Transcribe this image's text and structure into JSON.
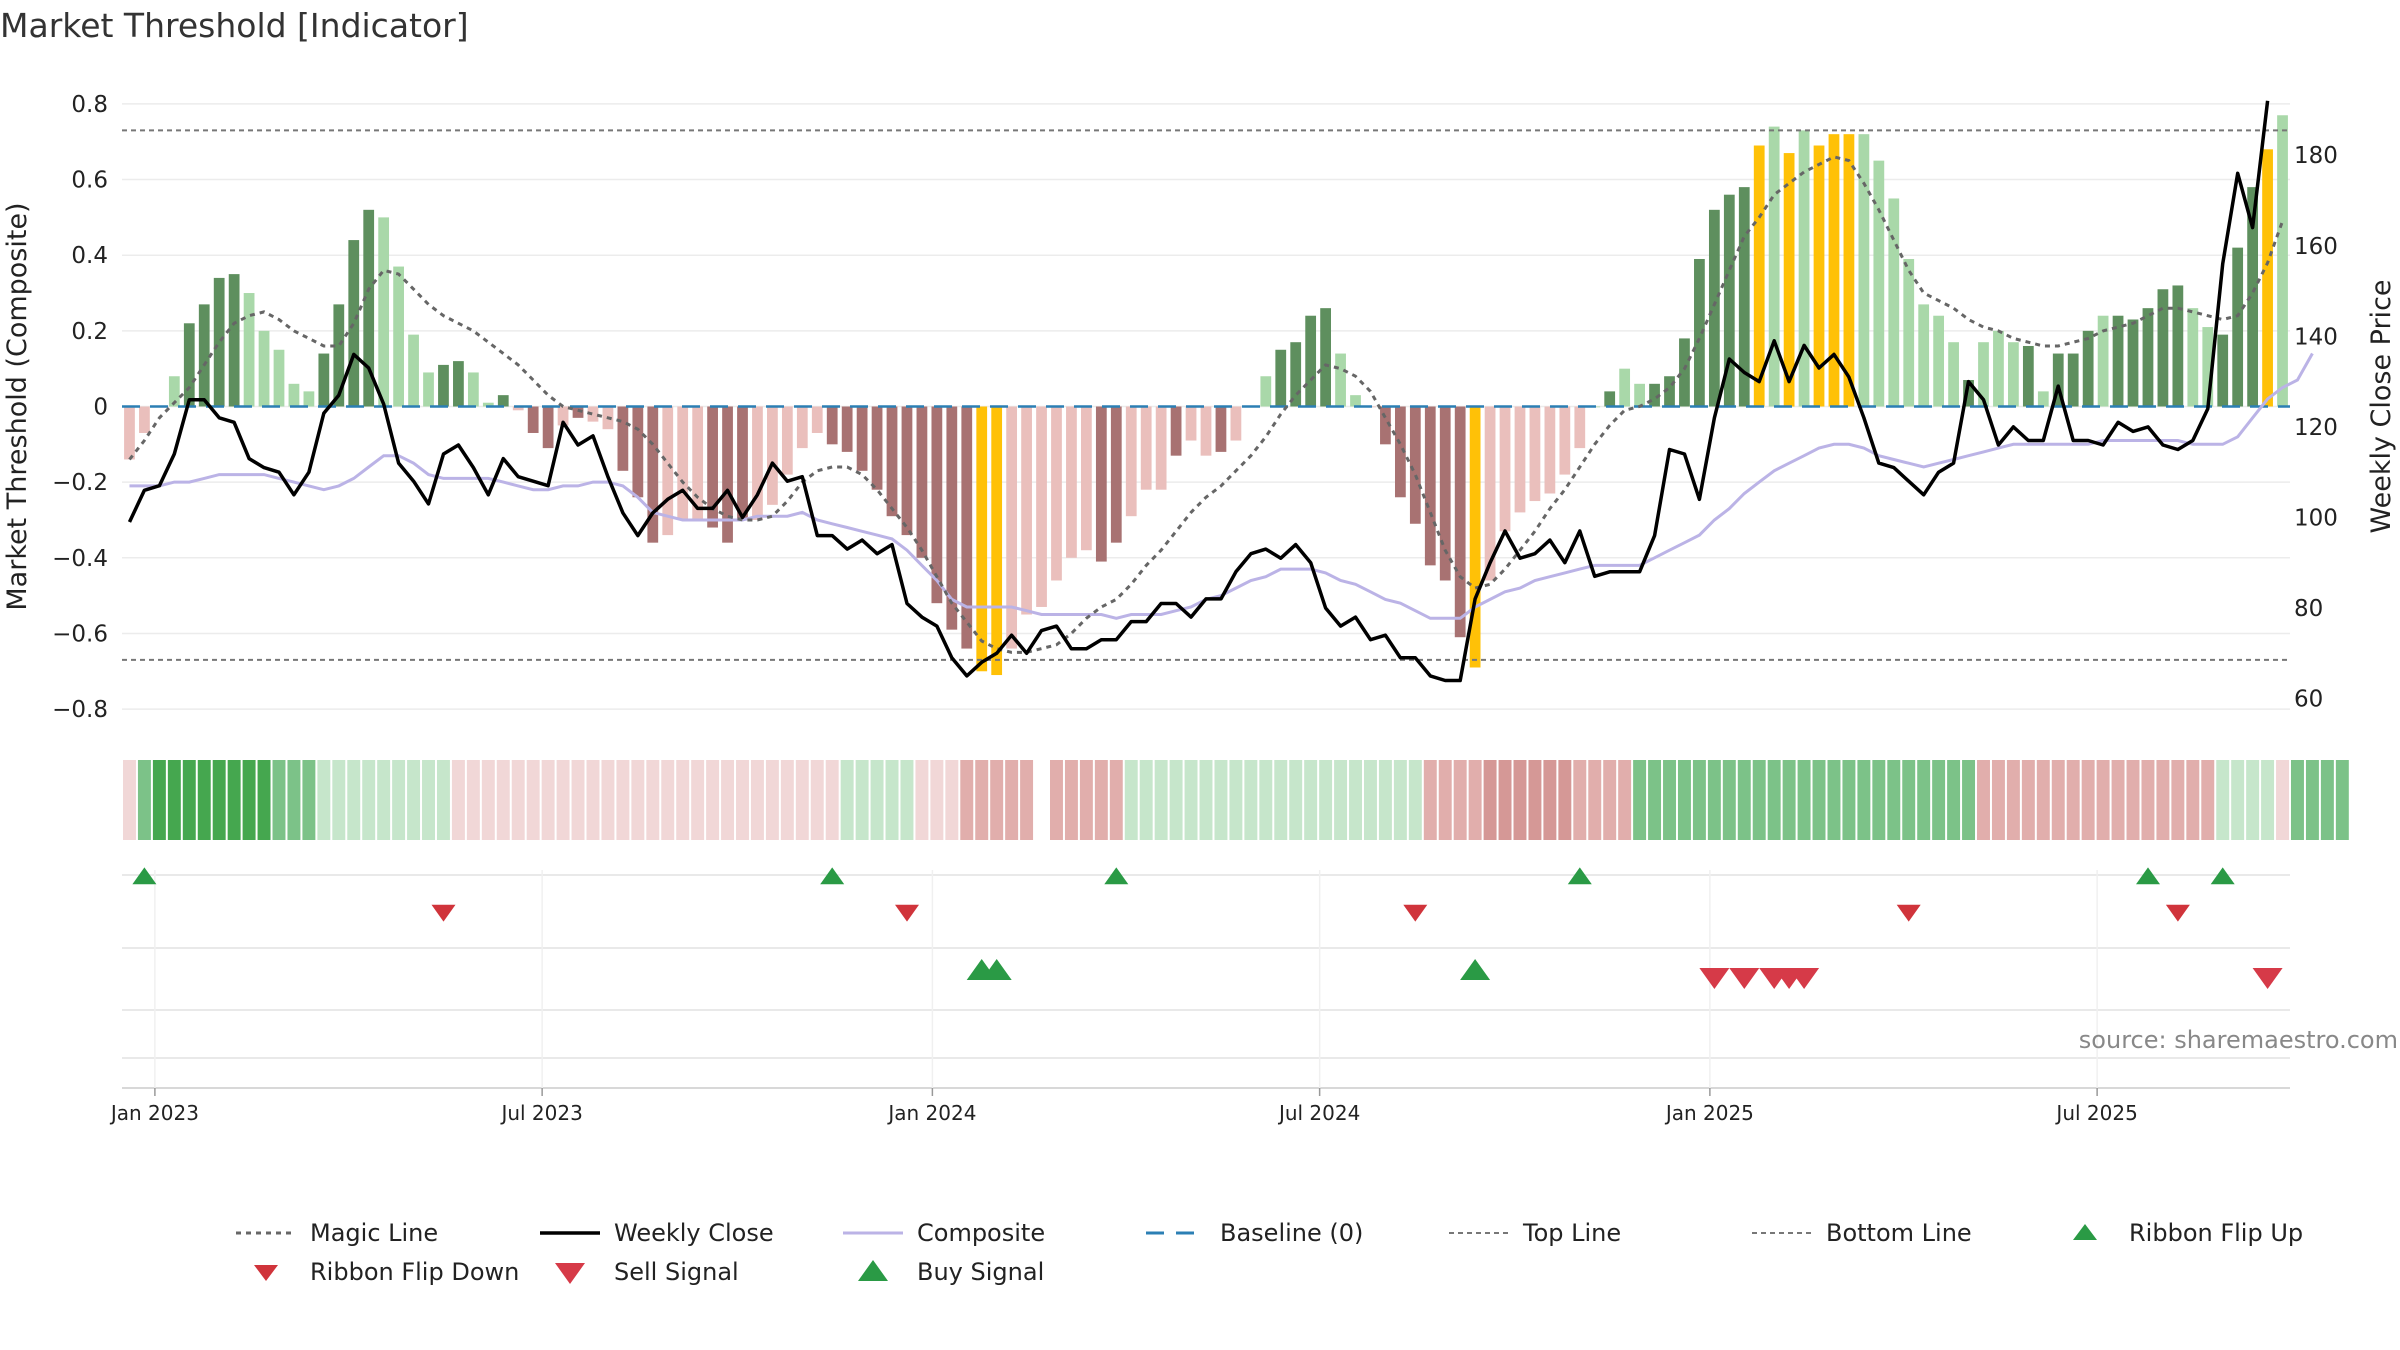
{
  "chart_data": {
    "type": "bar",
    "title": "Market Threshold [Indicator]",
    "ylabel": "Market Threshold (Composite)",
    "y2label": "Weekly Close Price",
    "source": "source: sharemaestro.com",
    "ylim": [
      -0.85,
      0.85
    ],
    "y2lim": [
      53.5,
      195.5
    ],
    "yticks": [
      {
        "v": 0.8,
        "label": "0.8"
      },
      {
        "v": 0.6,
        "label": "0.6"
      },
      {
        "v": 0.4,
        "label": "0.4"
      },
      {
        "v": 0.2,
        "label": "0.2"
      },
      {
        "v": 0,
        "label": "0"
      },
      {
        "v": -0.2,
        "label": "−0.2"
      },
      {
        "v": -0.4,
        "label": "−0.4"
      },
      {
        "v": -0.6,
        "label": "−0.6"
      },
      {
        "v": -0.8,
        "label": "−0.8"
      }
    ],
    "y2ticks": [
      {
        "v": 180,
        "label": "180"
      },
      {
        "v": 160,
        "label": "160"
      },
      {
        "v": 140,
        "label": "140"
      },
      {
        "v": 120,
        "label": "120"
      },
      {
        "v": 100,
        "label": "100"
      },
      {
        "v": 80,
        "label": "80"
      },
      {
        "v": 60,
        "label": "60"
      }
    ],
    "xticks": [
      {
        "week": 2.2,
        "label": "Jan 2023"
      },
      {
        "week": 28.1,
        "label": "Jul 2023"
      },
      {
        "week": 54.2,
        "label": "Jan 2024"
      },
      {
        "week": 80.1,
        "label": "Jul 2024"
      },
      {
        "week": 106.2,
        "label": "Jan 2025"
      },
      {
        "week": 132.1,
        "label": "Jul 2025"
      }
    ],
    "top_line": 0.73,
    "bottom_line": -0.67,
    "grid": true,
    "legend_position": "bottom",
    "colors": {
      "pos_dark": "#5e8f5e",
      "pos_light": "#a9d8a9",
      "neg_dark": "#a87272",
      "neg_light": "#eabfbc",
      "extreme": "#ffc107",
      "magic": "#666666",
      "close": "#000000",
      "composite": "#bbb3e6",
      "baseline": "#2b7fb4",
      "threshold_line": "#777777",
      "flip_up": "#2a9a45",
      "flip_down": "#d0343b",
      "buy": "#2a9a45",
      "sell": "#d63a48"
    },
    "bars": [
      -0.14,
      -0.07,
      0.0,
      0.08,
      0.22,
      0.27,
      0.34,
      0.35,
      0.3,
      0.2,
      0.15,
      0.06,
      0.04,
      0.14,
      0.27,
      0.44,
      0.52,
      0.5,
      0.37,
      0.19,
      0.09,
      0.11,
      0.12,
      0.09,
      0.01,
      0.03,
      -0.01,
      -0.07,
      -0.11,
      -0.05,
      -0.03,
      -0.04,
      -0.06,
      -0.17,
      -0.24,
      -0.36,
      -0.34,
      -0.3,
      -0.3,
      -0.32,
      -0.36,
      -0.3,
      -0.3,
      -0.26,
      -0.18,
      -0.11,
      -0.07,
      -0.1,
      -0.12,
      -0.17,
      -0.22,
      -0.29,
      -0.34,
      -0.4,
      -0.52,
      -0.59,
      -0.64,
      -0.7,
      -0.71,
      -0.64,
      -0.55,
      -0.53,
      -0.46,
      -0.4,
      -0.38,
      -0.41,
      -0.36,
      -0.29,
      -0.22,
      -0.22,
      -0.13,
      -0.09,
      -0.13,
      -0.12,
      -0.09,
      0.0,
      0.08,
      0.15,
      0.17,
      0.24,
      0.26,
      0.14,
      0.03,
      0.0,
      -0.1,
      -0.24,
      -0.31,
      -0.42,
      -0.46,
      -0.61,
      -0.69,
      -0.46,
      -0.33,
      -0.28,
      -0.25,
      -0.23,
      -0.18,
      -0.11,
      0.0,
      0.04,
      0.1,
      0.06,
      0.06,
      0.08,
      0.18,
      0.39,
      0.52,
      0.56,
      0.58,
      0.69,
      0.74,
      0.67,
      0.73,
      0.69,
      0.72,
      0.72,
      0.72,
      0.65,
      0.55,
      0.39,
      0.27,
      0.24,
      0.17,
      0.07,
      0.17,
      0.2,
      0.17,
      0.16,
      0.04,
      0.14,
      0.14,
      0.2,
      0.24,
      0.24,
      0.23,
      0.26,
      0.31,
      0.32,
      0.26,
      0.21,
      0.19,
      0.42,
      0.58,
      0.68,
      0.77
    ],
    "bar_shades": [
      "negL",
      "negL",
      "posL",
      "posL",
      "posD",
      "posD",
      "posD",
      "posD",
      "posL",
      "posL",
      "posL",
      "posL",
      "posL",
      "posD",
      "posD",
      "posD",
      "posD",
      "posL",
      "posL",
      "posL",
      "posL",
      "posD",
      "posD",
      "posL",
      "posL",
      "posD",
      "negL",
      "negD",
      "negD",
      "negL",
      "negD",
      "negL",
      "negL",
      "negD",
      "negD",
      "negD",
      "negL",
      "negL",
      "negL",
      "negD",
      "negD",
      "negD",
      "negL",
      "negL",
      "negL",
      "negL",
      "negL",
      "negD",
      "negD",
      "negD",
      "negD",
      "negD",
      "negD",
      "negD",
      "negD",
      "negD",
      "negD",
      "ext",
      "ext",
      "negL",
      "negL",
      "negL",
      "negL",
      "negL",
      "negL",
      "negD",
      "negD",
      "negL",
      "negL",
      "negL",
      "negD",
      "negL",
      "negL",
      "negD",
      "negL",
      "negL",
      "posL",
      "posD",
      "posD",
      "posD",
      "posD",
      "posL",
      "posL",
      "negL",
      "negD",
      "negD",
      "negD",
      "negD",
      "negD",
      "negD",
      "ext",
      "negL",
      "negL",
      "negL",
      "negL",
      "negL",
      "negL",
      "negL",
      "posL",
      "posD",
      "posL",
      "posL",
      "posD",
      "posD",
      "posD",
      "posD",
      "posD",
      "posD",
      "posD",
      "ext",
      "posL",
      "ext",
      "posL",
      "ext",
      "ext",
      "ext",
      "posL",
      "posL",
      "posL",
      "posL",
      "posL",
      "posL",
      "posL",
      "posD",
      "posL",
      "posL",
      "posL",
      "posD",
      "posL",
      "posD",
      "posD",
      "posD",
      "posL",
      "posD",
      "posD",
      "posD",
      "posD",
      "posD",
      "posL",
      "posL",
      "posD",
      "posD",
      "posD",
      "ext"
    ],
    "magic_line": [
      -0.14,
      -0.09,
      -0.03,
      0.01,
      0.05,
      0.11,
      0.17,
      0.22,
      0.24,
      0.25,
      0.23,
      0.2,
      0.18,
      0.16,
      0.16,
      0.22,
      0.31,
      0.36,
      0.35,
      0.31,
      0.27,
      0.24,
      0.22,
      0.2,
      0.17,
      0.14,
      0.11,
      0.07,
      0.03,
      0.0,
      -0.01,
      -0.02,
      -0.03,
      -0.04,
      -0.06,
      -0.1,
      -0.15,
      -0.2,
      -0.24,
      -0.27,
      -0.29,
      -0.3,
      -0.3,
      -0.29,
      -0.25,
      -0.2,
      -0.17,
      -0.16,
      -0.16,
      -0.18,
      -0.22,
      -0.27,
      -0.32,
      -0.38,
      -0.45,
      -0.52,
      -0.57,
      -0.62,
      -0.64,
      -0.65,
      -0.65,
      -0.64,
      -0.63,
      -0.6,
      -0.56,
      -0.53,
      -0.51,
      -0.47,
      -0.42,
      -0.38,
      -0.33,
      -0.28,
      -0.24,
      -0.21,
      -0.17,
      -0.13,
      -0.08,
      -0.02,
      0.03,
      0.07,
      0.11,
      0.1,
      0.08,
      0.04,
      -0.03,
      -0.1,
      -0.18,
      -0.28,
      -0.38,
      -0.45,
      -0.48,
      -0.47,
      -0.43,
      -0.38,
      -0.33,
      -0.27,
      -0.22,
      -0.16,
      -0.1,
      -0.05,
      -0.01,
      0.0,
      0.02,
      0.05,
      0.1,
      0.18,
      0.27,
      0.36,
      0.45,
      0.5,
      0.56,
      0.59,
      0.62,
      0.64,
      0.66,
      0.65,
      0.59,
      0.52,
      0.44,
      0.36,
      0.3,
      0.28,
      0.26,
      0.23,
      0.21,
      0.2,
      0.18,
      0.17,
      0.16,
      0.16,
      0.17,
      0.18,
      0.2,
      0.21,
      0.22,
      0.24,
      0.26,
      0.26,
      0.25,
      0.24,
      0.23,
      0.24,
      0.3,
      0.38,
      0.49
    ],
    "weekly_close": [
      99,
      106,
      107,
      114,
      126,
      126,
      122,
      121,
      113,
      111,
      110,
      105,
      110,
      123,
      127,
      136,
      133,
      125,
      112,
      108,
      103,
      114,
      116,
      111,
      105,
      113,
      109,
      108,
      107,
      121,
      116,
      118,
      109,
      101,
      96,
      101,
      104,
      106,
      102,
      102,
      106,
      100,
      105,
      112,
      108,
      109,
      96,
      96,
      93,
      95,
      92,
      94,
      81,
      78,
      76,
      69,
      65,
      68,
      70,
      74,
      70,
      75,
      76,
      71,
      71,
      73,
      73,
      77,
      77,
      81,
      81,
      78,
      82,
      82,
      88,
      92,
      93,
      91,
      94,
      90,
      80,
      76,
      78,
      73,
      74,
      69,
      69,
      65,
      64,
      64,
      82,
      90,
      97,
      91,
      92,
      95,
      90,
      97,
      87,
      88,
      88,
      88,
      96,
      115,
      114,
      104,
      122,
      135,
      132,
      130,
      139,
      130,
      138,
      133,
      136,
      131,
      122,
      112,
      111,
      108,
      105,
      110,
      112,
      130,
      126,
      116,
      120,
      117,
      117,
      129,
      117,
      117,
      116,
      121,
      119,
      120,
      116,
      115,
      117,
      124,
      156,
      176,
      164,
      192
    ],
    "composite": [
      -0.21,
      -0.21,
      -0.21,
      -0.2,
      -0.2,
      -0.19,
      -0.18,
      -0.18,
      -0.18,
      -0.18,
      -0.19,
      -0.2,
      -0.21,
      -0.22,
      -0.21,
      -0.19,
      -0.16,
      -0.13,
      -0.13,
      -0.15,
      -0.18,
      -0.19,
      -0.19,
      -0.19,
      -0.19,
      -0.2,
      -0.21,
      -0.22,
      -0.22,
      -0.21,
      -0.21,
      -0.2,
      -0.2,
      -0.21,
      -0.24,
      -0.28,
      -0.29,
      -0.3,
      -0.3,
      -0.3,
      -0.3,
      -0.3,
      -0.29,
      -0.29,
      -0.29,
      -0.28,
      -0.3,
      -0.31,
      -0.32,
      -0.33,
      -0.34,
      -0.35,
      -0.38,
      -0.42,
      -0.46,
      -0.51,
      -0.53,
      -0.53,
      -0.53,
      -0.53,
      -0.54,
      -0.55,
      -0.55,
      -0.55,
      -0.55,
      -0.55,
      -0.56,
      -0.55,
      -0.55,
      -0.55,
      -0.54,
      -0.53,
      -0.51,
      -0.5,
      -0.48,
      -0.46,
      -0.45,
      -0.43,
      -0.43,
      -0.43,
      -0.44,
      -0.46,
      -0.47,
      -0.49,
      -0.51,
      -0.52,
      -0.54,
      -0.56,
      -0.56,
      -0.56,
      -0.53,
      -0.51,
      -0.49,
      -0.48,
      -0.46,
      -0.45,
      -0.44,
      -0.43,
      -0.42,
      -0.42,
      -0.42,
      -0.42,
      -0.4,
      -0.38,
      -0.36,
      -0.34,
      -0.3,
      -0.27,
      -0.23,
      -0.2,
      -0.17,
      -0.15,
      -0.13,
      -0.11,
      -0.1,
      -0.1,
      -0.11,
      -0.13,
      -0.14,
      -0.15,
      -0.16,
      -0.15,
      -0.14,
      -0.13,
      -0.12,
      -0.11,
      -0.1,
      -0.1,
      -0.1,
      -0.1,
      -0.1,
      -0.1,
      -0.09,
      -0.09,
      -0.09,
      -0.09,
      -0.09,
      -0.09,
      -0.1,
      -0.1,
      -0.1,
      -0.08,
      -0.03,
      0.02,
      0.05,
      0.07,
      0.14
    ],
    "ribbon": [
      -1,
      2,
      3,
      3,
      3,
      3,
      3,
      3,
      3,
      3,
      2,
      2,
      2,
      1,
      1,
      1,
      1,
      1,
      1,
      1,
      1,
      1,
      -1,
      -1,
      -1,
      -1,
      -1,
      -1,
      -1,
      -1,
      -1,
      -1,
      -1,
      -1,
      -1,
      -1,
      -1,
      -1,
      -1,
      -1,
      -1,
      -1,
      -1,
      -1,
      -1,
      -1,
      -1,
      -1,
      1,
      1,
      1,
      1,
      1,
      -1,
      -1,
      -1,
      -2,
      -2,
      -2,
      -2,
      -2,
      0,
      -2,
      -2,
      -2,
      -2,
      -2,
      1,
      1,
      1,
      1,
      1,
      1,
      1,
      1,
      1,
      1,
      1,
      1,
      1,
      1,
      1,
      1,
      1,
      1,
      1,
      1,
      -2,
      -2,
      -2,
      -2,
      -3,
      -3,
      -3,
      -3,
      -3,
      -3,
      -2,
      -2,
      -2,
      -2,
      2,
      2,
      2,
      2,
      2,
      2,
      2,
      2,
      2,
      2,
      2,
      2,
      2,
      2,
      2,
      2,
      2,
      2,
      2,
      2,
      2,
      2,
      2,
      -2,
      -2,
      -2,
      -2,
      -2,
      -2,
      -2,
      -2,
      -2,
      -2,
      -2,
      -2,
      -2,
      -2,
      -2,
      -2,
      1,
      1,
      1,
      1,
      -1,
      2,
      2,
      2,
      2
    ],
    "ribbon_colors": {
      "3": "#45a74f",
      "2": "#7cc288",
      "1": "#c6e6cb",
      "-1": "#f1d7d7",
      "-2": "#e1aeac",
      "-3": "#d59896",
      "0": "#ffffff"
    },
    "ribbon_flip_up": [
      1,
      47,
      66,
      97,
      135,
      140
    ],
    "ribbon_flip_down": [
      21,
      52,
      86,
      119,
      137
    ],
    "buy_signal": [
      57,
      58,
      90
    ],
    "sell_signal": [
      106,
      108,
      110,
      111,
      112,
      143
    ],
    "legend": [
      {
        "key": "magic",
        "label": "Magic Line"
      },
      {
        "key": "close",
        "label": "Weekly Close"
      },
      {
        "key": "composite",
        "label": "Composite"
      },
      {
        "key": "baseline",
        "label": "Baseline (0)"
      },
      {
        "key": "top",
        "label": "Top Line"
      },
      {
        "key": "bottom",
        "label": "Bottom Line"
      },
      {
        "key": "flip_up",
        "label": "Ribbon Flip Up"
      },
      {
        "key": "flip_down",
        "label": "Ribbon Flip Down"
      },
      {
        "key": "sell",
        "label": "Sell Signal"
      },
      {
        "key": "buy",
        "label": "Buy Signal"
      }
    ]
  }
}
